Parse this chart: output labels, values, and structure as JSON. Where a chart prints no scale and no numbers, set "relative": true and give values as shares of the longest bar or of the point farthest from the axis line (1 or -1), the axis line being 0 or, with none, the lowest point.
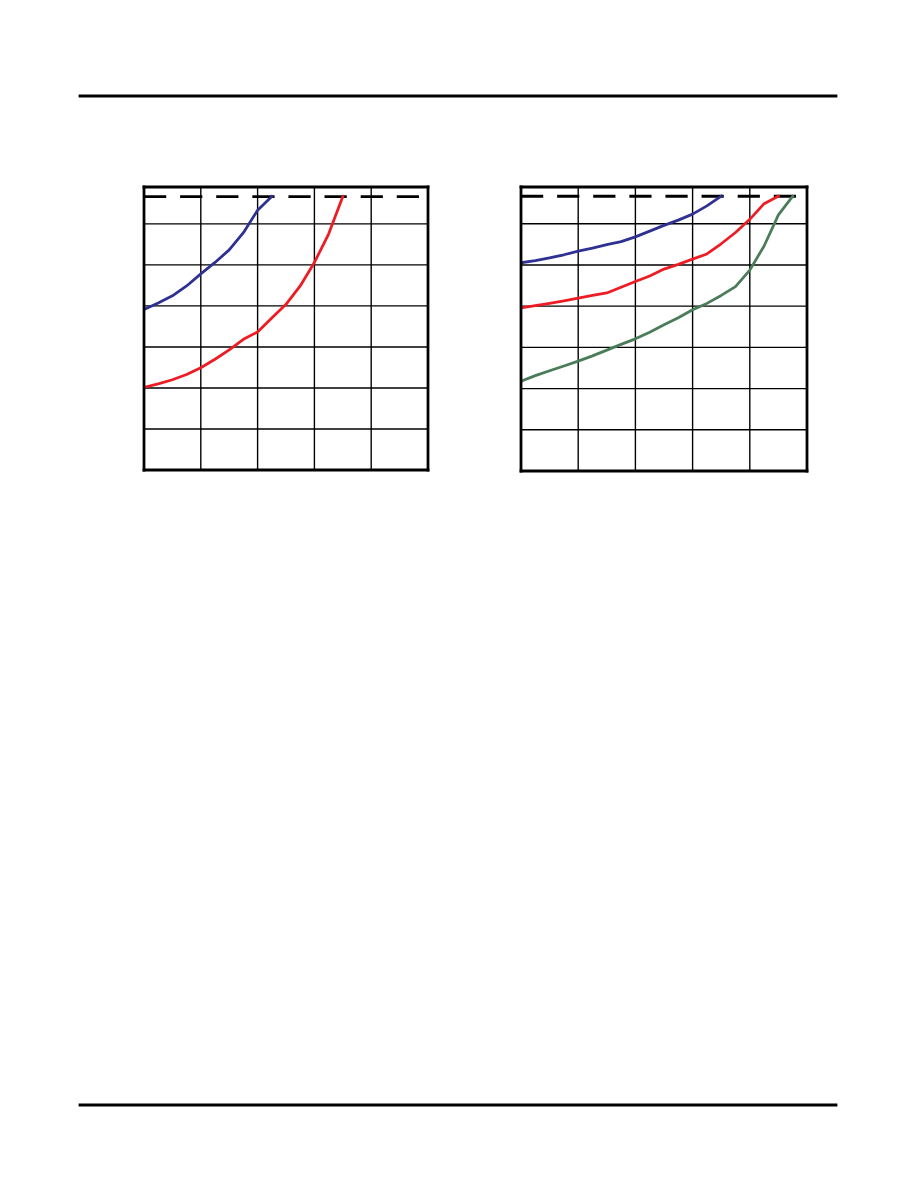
{
  "chart_data": [
    {
      "type": "line",
      "relative": true,
      "grid": true,
      "categories": [
        null,
        null,
        null,
        null,
        null,
        null,
        null,
        null,
        null,
        null,
        null,
        null,
        null,
        null,
        null,
        null,
        null,
        null,
        null,
        null,
        null
      ],
      "series": [
        {
          "color": "#000000",
          "line_style": "dashed",
          "values": [
            1,
            1,
            1,
            1,
            1,
            1,
            1,
            1,
            1,
            1,
            1,
            1,
            1,
            1,
            1,
            1,
            1,
            1,
            1,
            1,
            1
          ]
        },
        {
          "color": "#2e3192",
          "values": [
            0.587,
            0.611,
            0.637,
            0.673,
            0.717,
            0.759,
            0.805,
            0.868,
            0.95,
            1.0,
            null,
            null,
            null,
            null,
            null,
            null,
            null,
            null,
            null,
            null,
            null
          ]
        },
        {
          "color": "#ed1c24",
          "values": [
            0.302,
            0.315,
            0.33,
            0.349,
            0.374,
            0.405,
            0.439,
            0.478,
            0.505,
            0.556,
            0.606,
            0.673,
            0.759,
            0.863,
            1.0,
            null,
            null,
            null,
            null,
            null,
            null
          ]
        }
      ]
    },
    {
      "type": "line",
      "relative": true,
      "grid": true,
      "categories": [
        null,
        null,
        null,
        null,
        null,
        null,
        null,
        null,
        null,
        null,
        null,
        null,
        null,
        null,
        null,
        null,
        null,
        null,
        null,
        null,
        null
      ],
      "series": [
        {
          "color": "#000000",
          "line_style": "dashed",
          "values": [
            1,
            1,
            1,
            1,
            1,
            1,
            1,
            1,
            1,
            1,
            1,
            1,
            1,
            1,
            1,
            1,
            1,
            1,
            1,
            1,
            1
          ]
        },
        {
          "color": "#2e3192",
          "values": [
            0.758,
            0.766,
            0.776,
            0.787,
            0.8,
            0.811,
            0.824,
            0.835,
            0.852,
            0.873,
            0.894,
            0.913,
            0.935,
            0.965,
            1.0,
            null,
            null,
            null,
            null,
            null,
            null
          ]
        },
        {
          "color": "#ed1c24",
          "values": [
            0.594,
            0.602,
            0.61,
            0.619,
            0.629,
            0.639,
            0.648,
            0.669,
            0.69,
            0.71,
            0.735,
            0.752,
            0.771,
            0.79,
            0.827,
            0.868,
            0.916,
            0.973,
            1.0,
            null,
            null
          ]
        },
        {
          "color": "#4a7c59",
          "values": [
            0.327,
            0.347,
            0.365,
            0.382,
            0.4,
            0.419,
            0.44,
            0.461,
            0.481,
            0.505,
            0.532,
            0.558,
            0.587,
            0.61,
            0.639,
            0.671,
            0.731,
            0.819,
            0.932,
            1.0,
            null
          ]
        }
      ]
    }
  ]
}
